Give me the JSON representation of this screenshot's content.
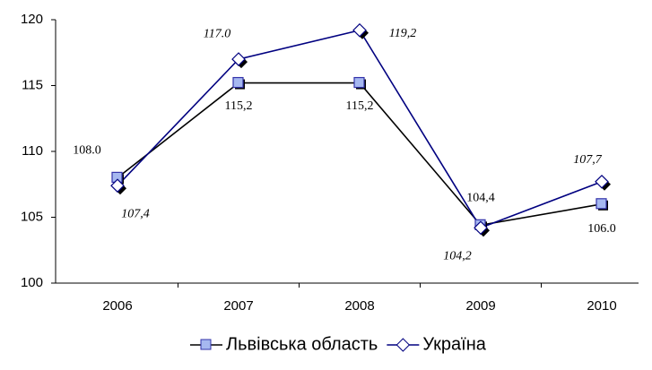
{
  "chart_data": {
    "type": "line",
    "categories": [
      "2006",
      "2007",
      "2008",
      "2009",
      "2010"
    ],
    "series": [
      {
        "name": "Львівська область",
        "color": "#000000",
        "marker": "square",
        "marker_color": "#a6b8f0",
        "values": [
          108.0,
          115.2,
          115.2,
          104.4,
          106.0
        ],
        "value_labels": [
          "108.0",
          "115,2",
          "115,2",
          "104,4",
          "106.0"
        ]
      },
      {
        "name": "Україна",
        "color": "#000080",
        "marker": "diamond",
        "marker_color": "#ffffff",
        "values": [
          107.4,
          117.0,
          119.2,
          104.2,
          107.7
        ],
        "value_labels": [
          "107,4",
          "117.0",
          "119,2",
          "104,2",
          "107,7"
        ]
      }
    ],
    "ylim": [
      100,
      120
    ],
    "yticks": [
      100,
      105,
      110,
      115,
      120
    ],
    "grid": false,
    "legend": "bottom"
  }
}
